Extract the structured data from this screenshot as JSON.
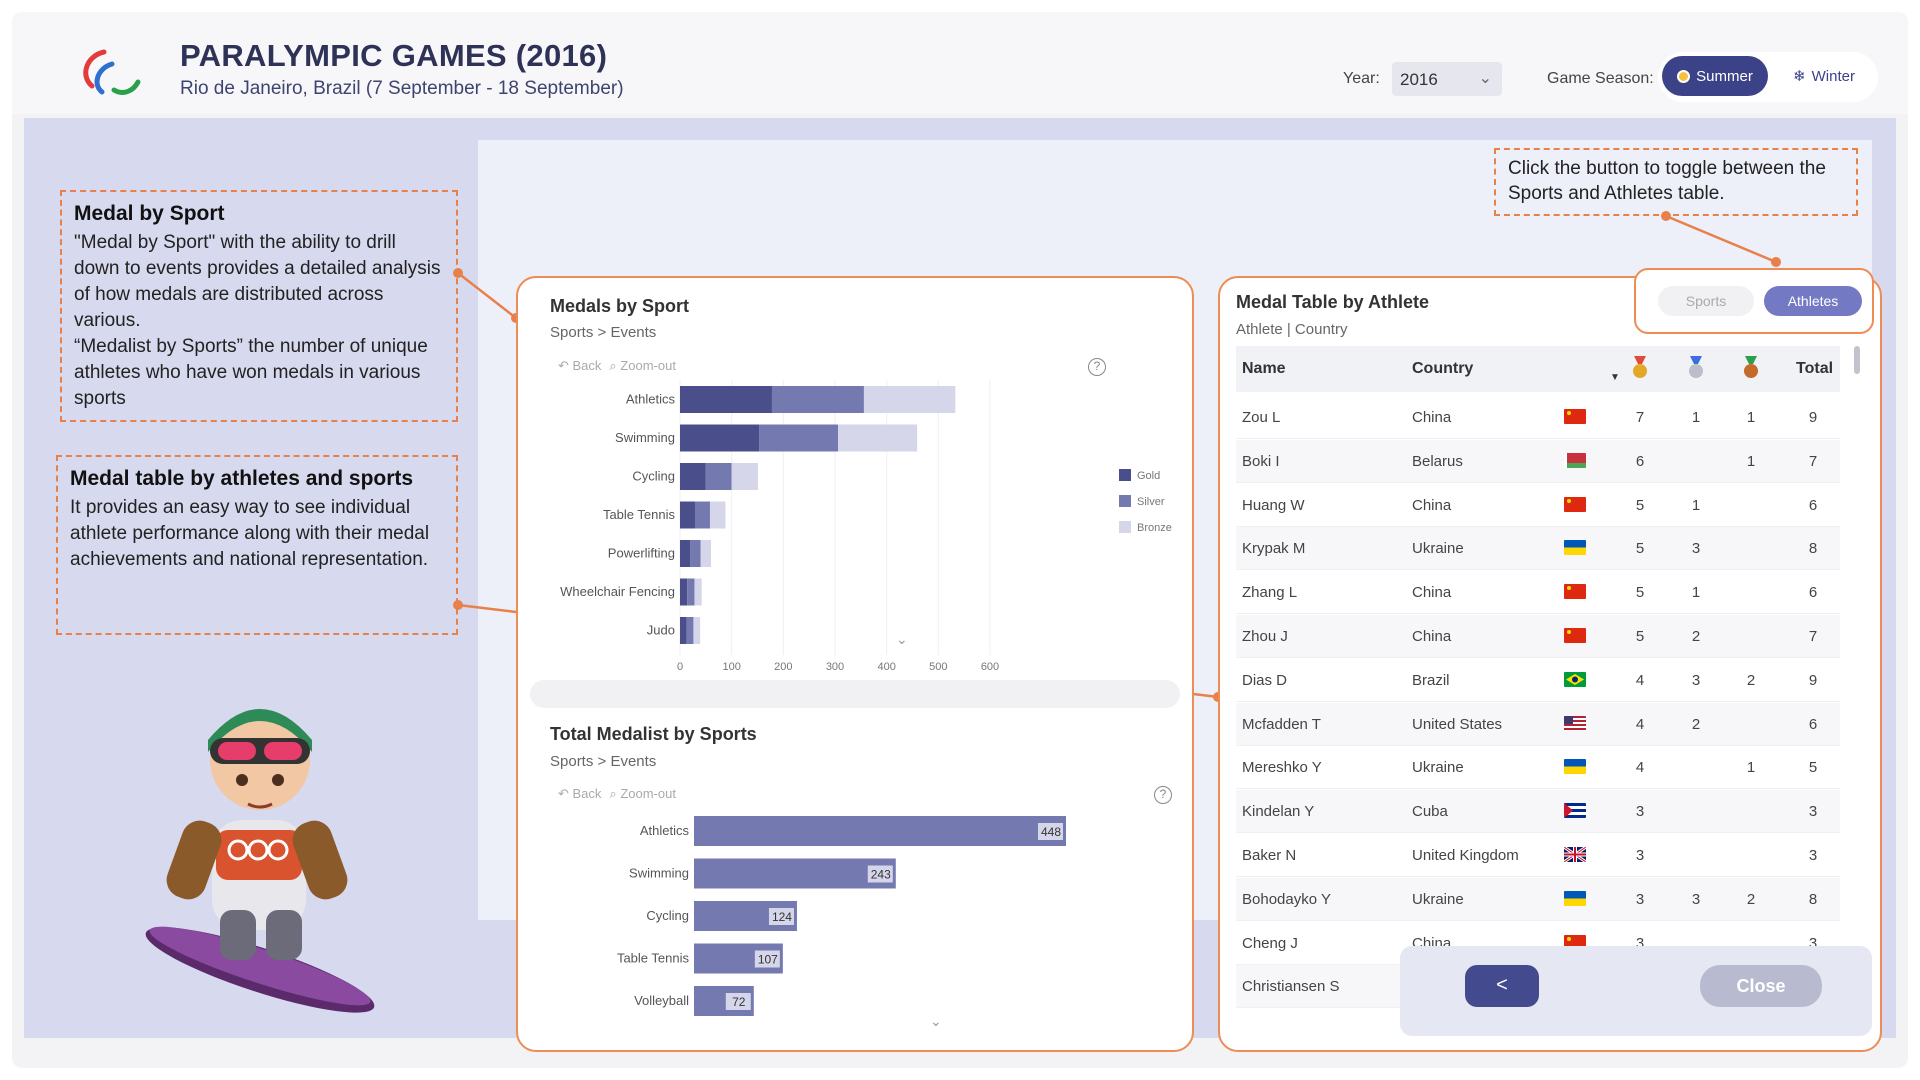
{
  "header": {
    "title": "PARALYMPIC GAMES (2016)",
    "subtitle": "Rio de Janeiro, Brazil (7 September - 18 September)",
    "year_label": "Year:",
    "year_value": "2016",
    "season_label": "Game Season:",
    "season_summer": "Summer",
    "season_winter": "Winter"
  },
  "callouts": {
    "medal_by_sport_title": "Medal by Sport",
    "medal_by_sport_text": "\"Medal by Sport\" with the ability to drill down to events provides a detailed analysis of how medals are distributed across various.\n“Medalist by Sports” the number of unique athletes who have won medals in various sports",
    "medal_table_title": "Medal table by athletes and sports",
    "medal_table_text": "It provides an easy way to see individual athlete performance along with their medal achievements and national representation.",
    "toggle_hint": "Click the button to toggle between the Sports and Athletes table."
  },
  "medals_chart": {
    "title": "Medals by Sport",
    "breadcrumb": "Sports > Events",
    "back": "Back",
    "zoom_out": "Zoom-out",
    "help": "?",
    "legend": [
      "Gold",
      "Silver",
      "Bronze"
    ]
  },
  "medalist_chart": {
    "title": "Total Medalist by Sports",
    "breadcrumb": "Sports > Events",
    "back": "Back",
    "zoom_out": "Zoom-out",
    "help": "?"
  },
  "chart_data": [
    {
      "type": "bar",
      "orientation": "horizontal",
      "stacked": true,
      "title": "Medals by Sport",
      "categories": [
        "Athletics",
        "Swimming",
        "Cycling",
        "Table Tennis",
        "Powerlifting",
        "Wheelchair Fencing",
        "Judo"
      ],
      "series": [
        {
          "name": "Gold",
          "values": [
            178,
            153,
            50,
            29,
            20,
            14,
            13
          ]
        },
        {
          "name": "Silver",
          "values": [
            178,
            153,
            50,
            29,
            20,
            14,
            13
          ]
        },
        {
          "name": "Bronze",
          "values": [
            177,
            153,
            51,
            30,
            20,
            14,
            13
          ]
        }
      ],
      "xlim": [
        0,
        600
      ],
      "xticks": [
        0,
        100,
        200,
        300,
        400,
        500,
        600
      ],
      "colors": [
        "#4a4f8c",
        "#7479b0",
        "#d5d6ea"
      ],
      "legend_position": "right"
    },
    {
      "type": "bar",
      "orientation": "horizontal",
      "title": "Total Medalist by Sports",
      "categories": [
        "Athletics",
        "Swimming",
        "Cycling",
        "Table Tennis",
        "Volleyball"
      ],
      "values": [
        448,
        243,
        124,
        107,
        72
      ],
      "colors": [
        "#7479b0"
      ]
    }
  ],
  "athlete_table": {
    "title": "Medal Table by Athlete",
    "subtitle": "Athlete | Country",
    "toggle_sports": "Sports",
    "toggle_athletes": "Athletes",
    "columns": {
      "name": "Name",
      "country": "Country",
      "total": "Total"
    },
    "rows": [
      {
        "name": "Zou L",
        "country": "China",
        "flag": "china",
        "gold": "7",
        "silver": "1",
        "bronze": "1",
        "total": "9"
      },
      {
        "name": "Boki I",
        "country": "Belarus",
        "flag": "belarus",
        "gold": "6",
        "silver": "",
        "bronze": "1",
        "total": "7"
      },
      {
        "name": "Huang W",
        "country": "China",
        "flag": "china",
        "gold": "5",
        "silver": "1",
        "bronze": "",
        "total": "6"
      },
      {
        "name": "Krypak M",
        "country": "Ukraine",
        "flag": "ukraine",
        "gold": "5",
        "silver": "3",
        "bronze": "",
        "total": "8"
      },
      {
        "name": "Zhang L",
        "country": "China",
        "flag": "china",
        "gold": "5",
        "silver": "1",
        "bronze": "",
        "total": "6"
      },
      {
        "name": "Zhou J",
        "country": "China",
        "flag": "china",
        "gold": "5",
        "silver": "2",
        "bronze": "",
        "total": "7"
      },
      {
        "name": "Dias D",
        "country": "Brazil",
        "flag": "brazil",
        "gold": "4",
        "silver": "3",
        "bronze": "2",
        "total": "9"
      },
      {
        "name": "Mcfadden T",
        "country": "United States",
        "flag": "usa",
        "gold": "4",
        "silver": "2",
        "bronze": "",
        "total": "6"
      },
      {
        "name": "Mereshko Y",
        "country": "Ukraine",
        "flag": "ukraine",
        "gold": "4",
        "silver": "",
        "bronze": "1",
        "total": "5"
      },
      {
        "name": "Kindelan Y",
        "country": "Cuba",
        "flag": "cuba",
        "gold": "3",
        "silver": "",
        "bronze": "",
        "total": "3"
      },
      {
        "name": "Baker N",
        "country": "United Kingdom",
        "flag": "uk",
        "gold": "3",
        "silver": "",
        "bronze": "",
        "total": "3"
      },
      {
        "name": "Bohodayko Y",
        "country": "Ukraine",
        "flag": "ukraine",
        "gold": "3",
        "silver": "3",
        "bronze": "2",
        "total": "8"
      },
      {
        "name": "Cheng J",
        "country": "China",
        "flag": "china",
        "gold": "3",
        "silver": "",
        "bronze": "",
        "total": "3"
      },
      {
        "name": "Christiansen S",
        "country": "",
        "flag": "",
        "gold": "",
        "silver": "",
        "bronze": "",
        "total": ""
      }
    ]
  },
  "buttons": {
    "back": "<",
    "close": "Close"
  },
  "colors": {
    "accent": "#ee8c55",
    "navy": "#3c4287",
    "gold": "#4a4f8c",
    "silver": "#7479b0",
    "bronze": "#d5d6ea"
  }
}
